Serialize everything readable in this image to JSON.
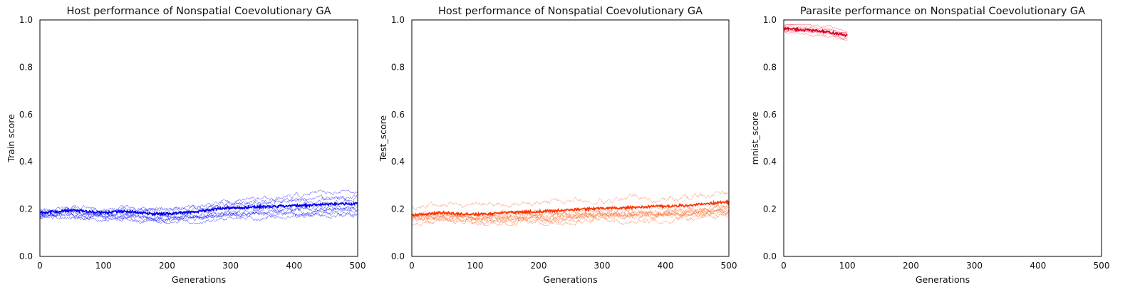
{
  "chart_data": [
    {
      "type": "line",
      "title": "Host performance of Nonspatial Coevolutionary GA",
      "xlabel": "Generations",
      "ylabel": "Train score",
      "xlim": [
        0,
        500
      ],
      "ylim": [
        0.0,
        1.0
      ],
      "xticks": [
        "0",
        "100",
        "200",
        "300",
        "400",
        "500"
      ],
      "yticks": [
        "0.0",
        "0.2",
        "0.4",
        "0.6",
        "0.8",
        "1.0"
      ],
      "grid": false,
      "colors": {
        "mean": "#0000ee",
        "runs": "#0000ff"
      },
      "mean": {
        "x": [
          0,
          25,
          50,
          75,
          100,
          125,
          150,
          175,
          200,
          225,
          250,
          275,
          300,
          325,
          350,
          375,
          400,
          425,
          450,
          475,
          500
        ],
        "y": [
          0.185,
          0.19,
          0.195,
          0.19,
          0.185,
          0.19,
          0.188,
          0.18,
          0.18,
          0.185,
          0.19,
          0.2,
          0.205,
          0.207,
          0.21,
          0.212,
          0.215,
          0.216,
          0.22,
          0.222,
          0.223
        ]
      },
      "runs_count": 10,
      "runs_band": {
        "low": 0.14,
        "high": 0.28
      },
      "runs_seed": 11
    },
    {
      "type": "line",
      "title": "Host performance of Nonspatial Coevolutionary GA",
      "xlabel": "Generations",
      "ylabel": "Test_score",
      "xlim": [
        0,
        500
      ],
      "ylim": [
        0.0,
        1.0
      ],
      "xticks": [
        "0",
        "100",
        "200",
        "300",
        "400",
        "500"
      ],
      "yticks": [
        "0.0",
        "0.2",
        "0.4",
        "0.6",
        "0.8",
        "1.0"
      ],
      "grid": false,
      "colors": {
        "mean": "#ff3300",
        "runs": "#ff6a2a"
      },
      "mean": {
        "x": [
          0,
          25,
          50,
          75,
          100,
          125,
          150,
          175,
          200,
          225,
          250,
          275,
          300,
          325,
          350,
          375,
          400,
          425,
          450,
          475,
          500
        ],
        "y": [
          0.175,
          0.18,
          0.185,
          0.18,
          0.178,
          0.18,
          0.185,
          0.188,
          0.19,
          0.193,
          0.197,
          0.2,
          0.203,
          0.205,
          0.207,
          0.21,
          0.212,
          0.215,
          0.218,
          0.225,
          0.23
        ]
      },
      "runs_count": 10,
      "runs_band": {
        "low": 0.13,
        "high": 0.3
      },
      "runs_seed": 23
    },
    {
      "type": "line",
      "title": "Parasite performance on Nonspatial Coevolutionary GA",
      "xlabel": "Generations",
      "ylabel": "mnist_score",
      "xlim": [
        0,
        500
      ],
      "ylim": [
        0.0,
        1.0
      ],
      "xticks": [
        "0",
        "100",
        "200",
        "300",
        "400",
        "500"
      ],
      "yticks": [
        "0.0",
        "0.2",
        "0.4",
        "0.6",
        "0.8",
        "1.0"
      ],
      "grid": false,
      "colors": {
        "mean": "#dd0022",
        "runs": "#ff2244"
      },
      "mean": {
        "x": [
          0,
          10,
          20,
          30,
          40,
          50,
          60,
          70,
          80,
          90,
          100
        ],
        "y": [
          0.962,
          0.964,
          0.96,
          0.958,
          0.956,
          0.955,
          0.952,
          0.948,
          0.944,
          0.938,
          0.935
        ]
      },
      "runs_count": 8,
      "runs_band": {
        "low": 0.9,
        "high": 0.98
      },
      "runs_seed": 37
    }
  ]
}
